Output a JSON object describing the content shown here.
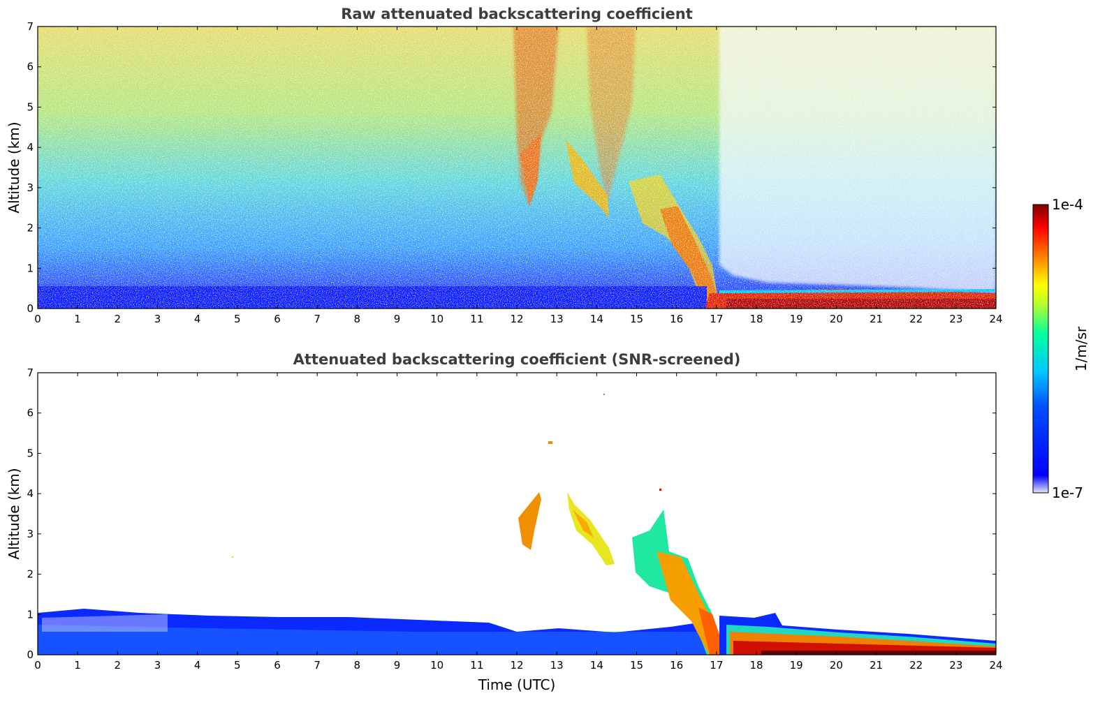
{
  "chart_data": [
    {
      "type": "heatmap",
      "title": "Raw attenuated backscattering coefficient",
      "xlabel": "",
      "ylabel": "Altitude (km)",
      "xlim": [
        0,
        24
      ],
      "ylim": [
        0,
        7
      ],
      "x_ticks": [
        "0",
        "1",
        "2",
        "3",
        "4",
        "5",
        "6",
        "7",
        "8",
        "9",
        "10",
        "11",
        "12",
        "13",
        "14",
        "15",
        "16",
        "17",
        "18",
        "19",
        "20",
        "21",
        "22",
        "23",
        "24"
      ],
      "y_ticks": [
        "0",
        "1",
        "2",
        "3",
        "4",
        "5",
        "6",
        "7"
      ],
      "features": [
        {
          "t_start": 0,
          "t_end": 16.8,
          "alt_bottom": 0,
          "alt_top": 0.5,
          "level": 0.2
        },
        {
          "t_start": 12.0,
          "t_end": 12.7,
          "alt_bottom": 2.6,
          "alt_top": 4.3,
          "level": 0.75
        },
        {
          "t_start": 13.3,
          "t_end": 14.4,
          "alt_bottom": 2.2,
          "alt_top": 4.1,
          "level": 0.6
        },
        {
          "t_start": 15.0,
          "t_end": 17.0,
          "alt_bottom": 0.1,
          "alt_top": 2.5,
          "level": 0.7
        },
        {
          "t_start": 17.0,
          "t_end": 24.0,
          "alt_bottom": 0,
          "alt_top": 0.4,
          "level": 0.85
        }
      ]
    },
    {
      "type": "heatmap",
      "title": "Attenuated backscattering coefficient (SNR-screened)",
      "xlabel": "Time (UTC)",
      "ylabel": "Altitude (km)",
      "xlim": [
        0,
        24
      ],
      "ylim": [
        0,
        7
      ],
      "x_ticks": [
        "0",
        "1",
        "2",
        "3",
        "4",
        "5",
        "6",
        "7",
        "8",
        "9",
        "10",
        "11",
        "12",
        "13",
        "14",
        "15",
        "16",
        "17",
        "18",
        "19",
        "20",
        "21",
        "22",
        "23",
        "24"
      ],
      "y_ticks": [
        "0",
        "1",
        "2",
        "3",
        "4",
        "5",
        "6",
        "7"
      ],
      "features": [
        {
          "t_start": 0,
          "t_end": 16.8,
          "alt_bottom": 0,
          "alt_top": 0.8,
          "level": 0.2
        },
        {
          "t_start": 12.0,
          "t_end": 12.6,
          "alt_bottom": 2.6,
          "alt_top": 4.0,
          "level": 0.75
        },
        {
          "t_start": 13.3,
          "t_end": 14.4,
          "alt_bottom": 2.3,
          "alt_top": 4.0,
          "level": 0.55
        },
        {
          "t_start": 15.0,
          "t_end": 17.0,
          "alt_bottom": 0.2,
          "alt_top": 2.6,
          "level": 0.65
        },
        {
          "t_start": 17.0,
          "t_end": 24.0,
          "alt_bottom": 0,
          "alt_top": 0.4,
          "level": 0.85
        }
      ]
    }
  ],
  "colorbar": {
    "label": "1/m/sr",
    "max_label": "1e-4",
    "min_label": "1e-7",
    "scale": "log",
    "colormap": [
      "#e6e6f5",
      "#0000ff",
      "#00c8ff",
      "#00ffa0",
      "#ffff00",
      "#ff8000",
      "#ff0000",
      "#800000"
    ]
  }
}
